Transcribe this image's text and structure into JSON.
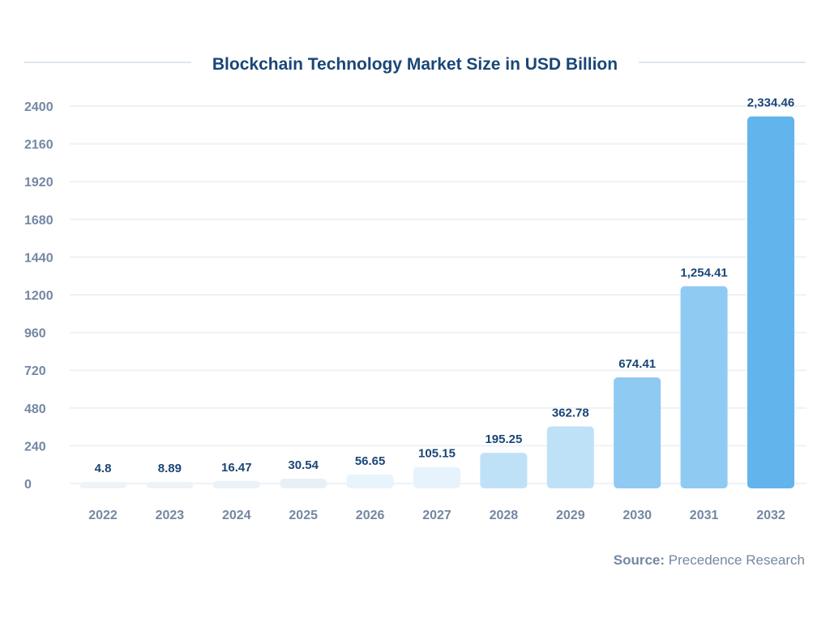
{
  "chart_data": {
    "type": "bar",
    "title": "Blockchain Technology Market Size in USD Billion",
    "categories": [
      "2022",
      "2023",
      "2024",
      "2025",
      "2026",
      "2027",
      "2028",
      "2029",
      "2030",
      "2031",
      "2032"
    ],
    "values": [
      4.8,
      8.89,
      16.47,
      30.54,
      56.65,
      105.15,
      195.25,
      362.78,
      674.41,
      1254.41,
      2334.46
    ],
    "value_labels": [
      "4.8",
      "8.89",
      "16.47",
      "30.54",
      "56.65",
      "105.15",
      "195.25",
      "362.78",
      "674.41",
      "1,254.41",
      "2,334.46"
    ],
    "bar_colors": [
      "#eef3f7",
      "#eef3f7",
      "#eaf1f7",
      "#e8f0f6",
      "#e8f4fc",
      "#e6f3fc",
      "#bfe1f8",
      "#bfe1f8",
      "#8fcaf2",
      "#8fcaf2",
      "#62b4ec"
    ],
    "ylim": [
      0,
      2400
    ],
    "yticks": [
      0,
      240,
      480,
      720,
      960,
      1200,
      1440,
      1680,
      1920,
      2160,
      2400
    ],
    "grid": true,
    "xlabel": "",
    "ylabel": ""
  },
  "source": {
    "label": "Source:",
    "text": "Precedence Research"
  },
  "colors": {
    "title": "#1a4677",
    "axis_text": "#7487a3",
    "grid": "#eef2f6"
  }
}
